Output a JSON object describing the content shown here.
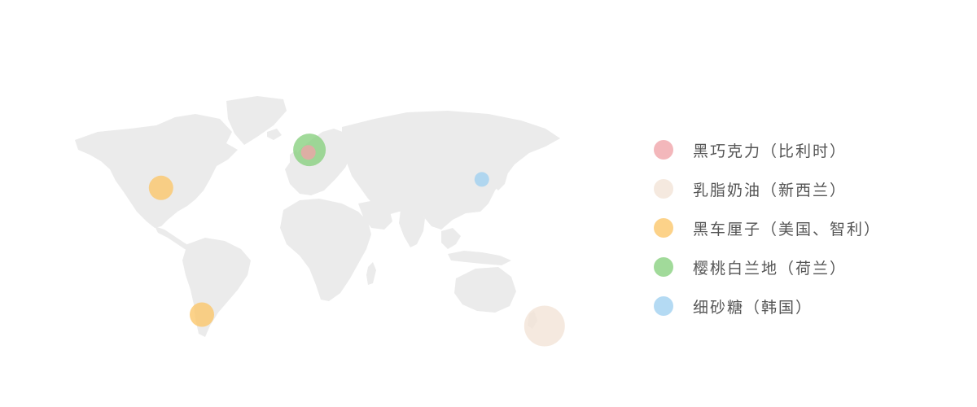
{
  "colors": {
    "land": "#ebebeb",
    "pink": "#f0a3a8",
    "beige": "#f2e3d6",
    "orange": "#fbc568",
    "green": "#86d07e",
    "blue": "#9fd0f0"
  },
  "legend": {
    "items": [
      {
        "label": "黑巧克力（比利时）",
        "color": "#f0a3a8",
        "icon": "dot-icon"
      },
      {
        "label": "乳脂奶油（新西兰）",
        "color": "#f2e3d6",
        "icon": "dot-icon"
      },
      {
        "label": "黑车厘子（美国、智利）",
        "color": "#fbc568",
        "icon": "dot-icon"
      },
      {
        "label": "樱桃白兰地（荷兰）",
        "color": "#86d07e",
        "icon": "dot-icon"
      },
      {
        "label": "细砂糖（韩国）",
        "color": "#9fd0f0",
        "icon": "dot-icon"
      }
    ]
  },
  "markers": [
    {
      "name": "marker-belgium",
      "series": "黑巧克力（比利时）",
      "color": "#f0a3a8",
      "lon": 4.5,
      "lat": 50.8,
      "size": "small"
    },
    {
      "name": "marker-netherlands",
      "series": "樱桃白兰地（荷兰）",
      "color": "#86d07e",
      "lon": 5.3,
      "lat": 52.1,
      "size": "large"
    },
    {
      "name": "marker-usa",
      "series": "黑车厘子（美国、智利）",
      "color": "#fbc568",
      "lon": -100,
      "lat": 32,
      "size": "medium"
    },
    {
      "name": "marker-chile",
      "series": "黑车厘子（美国、智利）",
      "color": "#fbc568",
      "lon": -71,
      "lat": -35,
      "size": "medium"
    },
    {
      "name": "marker-korea",
      "series": "细砂糖（韩国）",
      "color": "#9fd0f0",
      "lon": 127.5,
      "lat": 36.5,
      "size": "small"
    },
    {
      "name": "marker-new-zealand",
      "series": "乳脂奶油（新西兰）",
      "color": "#f2e3d6",
      "lon": 172,
      "lat": -41,
      "size": "xlarge"
    }
  ]
}
